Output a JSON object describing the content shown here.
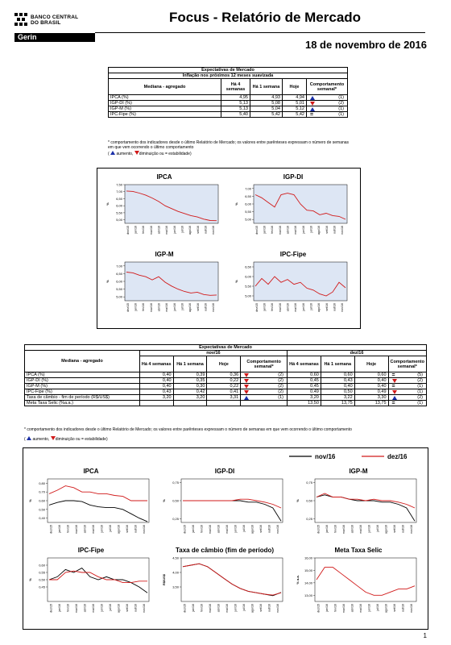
{
  "header": {
    "bank_name_line1": "BANCO CENTRAL",
    "bank_name_line2": "DO BRASIL",
    "dept": "Gerin",
    "title": "Focus - Relatório de Mercado",
    "date": "18 de novembro de 2016"
  },
  "table1": {
    "caption1": "Expectativas de Mercado",
    "caption2": "Inflação nos próximos 12 meses suavizada",
    "col_label": "Mediana - agregado",
    "col_4w": "Há 4 semanas",
    "col_1w": "Há 1 semana",
    "col_today": "Hoje",
    "col_behav": "Comportamento semanal*",
    "rows": [
      {
        "label": "IPCA (%)",
        "w4": "4,95",
        "w1": "4,93",
        "today": "4,94",
        "trend": "up",
        "count": "(1)"
      },
      {
        "label": "IGP-DI (%)",
        "w4": "5,13",
        "w1": "5,08",
        "today": "5,01",
        "trend": "down",
        "count": "(2)"
      },
      {
        "label": "IGP-M (%)",
        "w4": "5,13",
        "w1": "5,04",
        "today": "5,12",
        "trend": "up",
        "count": "(1)"
      },
      {
        "label": "IPC-Fipe (%)",
        "w4": "5,40",
        "w1": "5,42",
        "today": "5,42",
        "trend": "eq",
        "count": "(1)"
      }
    ],
    "footnote": "* comportamento dos indicadores desde o último Relatório de Mercado; os valores entre parênteses expressam o número de semanas em que vem ocorrendo o último comportamento",
    "legend_aumento": "aumento,",
    "legend_diminuicao": "diminuição ou",
    "legend_estab": "= estabilidade)"
  },
  "table2": {
    "caption": "Expectativas de Mercado",
    "label_header": "Mediana - agregado",
    "period1": "nov/16",
    "period2": "dez/16",
    "col_4w": "Há 4 semanas",
    "col_1w": "Há 1 semana",
    "col_today": "Hoje",
    "col_behav": "Comportamento semanal*",
    "rows": [
      {
        "label": "IPCA (%)",
        "a": [
          "0,40",
          "0,39",
          "0,36"
        ],
        "at": "down",
        "ac": "(2)",
        "b": [
          "0,60",
          "0,60",
          "0,60"
        ],
        "bt": "eq",
        "bc": "(5)"
      },
      {
        "label": "IGP-DI (%)",
        "a": [
          "0,40",
          "0,35",
          "0,22"
        ],
        "at": "down",
        "ac": "(2)",
        "b": [
          "0,45",
          "0,43",
          "0,40"
        ],
        "bt": "down",
        "bc": "(2)"
      },
      {
        "label": "IGP-M (%)",
        "a": [
          "0,40",
          "0,30",
          "0,22"
        ],
        "at": "down",
        "ac": "(2)",
        "b": [
          "0,45",
          "0,40",
          "0,40"
        ],
        "bt": "eq",
        "bc": "(1)"
      },
      {
        "label": "IPC-Fipe (%)",
        "a": [
          "0,43",
          "0,42",
          "0,41"
        ],
        "at": "down",
        "ac": "(2)",
        "b": [
          "0,49",
          "0,50",
          "0,49"
        ],
        "bt": "down",
        "bc": "(1)"
      },
      {
        "label": "Taxa de câmbio - fim de período (R$/US$)",
        "a": [
          "3,20",
          "3,20",
          "3,31"
        ],
        "at": "up",
        "ac": "(1)",
        "b": [
          "3,20",
          "3,22",
          "3,30"
        ],
        "bt": "up",
        "bc": "(2)"
      },
      {
        "label": "Meta Taxa Selic (%a.a.)",
        "a": [
          "",
          "",
          ""
        ],
        "at": "",
        "ac": "",
        "b": [
          "13,50",
          "13,75",
          "13,75"
        ],
        "bt": "eq",
        "bc": "(1)"
      }
    ],
    "footnote": "* comportamento dos indicadores desde o último Relatório de Mercado; os valores entre parênteses expressam o número de semanas em que vem ocorrendo o último comportamento",
    "legend_aumento": "aumento,",
    "legend_diminuicao": "diminuição ou",
    "legend_estab": "= estabilidade)"
  },
  "colors": {
    "series_nov": "#000000",
    "series_dez": "#d11a1a",
    "panel1_bg": "#dde6f4",
    "up": "#1a2fa8",
    "down": "#d11a1a"
  },
  "chart_data": [
    {
      "type": "line",
      "title": "IPCA",
      "ylabel": "%",
      "ylim": [
        4.75,
        7.5
      ],
      "yticks": [
        "7,50",
        "7,00",
        "6,50",
        "6,00",
        "5,50",
        "5,00"
      ],
      "xticks": [
        "dez/15",
        "jan/16",
        "fev/16",
        "mar/16",
        "abr/16",
        "mai/16",
        "jun/16",
        "jul/16",
        "ago/16",
        "set/16",
        "out/16",
        "nov/16"
      ],
      "series": [
        {
          "values": [
            7.05,
            7.02,
            6.9,
            6.75,
            6.55,
            6.3,
            6.0,
            5.8,
            5.6,
            5.45,
            5.3,
            5.2,
            5.05,
            4.95,
            4.94
          ]
        }
      ]
    },
    {
      "type": "line",
      "title": "IGP-DI",
      "ylabel": "%",
      "ylim": [
        4.75,
        7.25
      ],
      "yticks": [
        "7,00",
        "6,50",
        "6,00",
        "5,50",
        "5,00"
      ],
      "xticks": [
        "dez/15",
        "jan/16",
        "fev/16",
        "mar/16",
        "abr/16",
        "mai/16",
        "jun/16",
        "jul/16",
        "ago/16",
        "set/16",
        "out/16",
        "nov/16"
      ],
      "series": [
        {
          "values": [
            6.6,
            6.4,
            6.1,
            5.8,
            6.6,
            6.7,
            6.6,
            6.0,
            5.6,
            5.55,
            5.3,
            5.4,
            5.25,
            5.2,
            5.01
          ]
        }
      ]
    },
    {
      "type": "line",
      "title": "IGP-M",
      "ylabel": "%",
      "ylim": [
        4.75,
        7.25
      ],
      "yticks": [
        "7,00",
        "6,50",
        "6,00",
        "5,50",
        "5,00"
      ],
      "xticks": [
        "dez/15",
        "jan/16",
        "fev/16",
        "mar/16",
        "abr/16",
        "mai/16",
        "jun/16",
        "jul/16",
        "ago/16",
        "set/16",
        "out/16",
        "nov/16"
      ],
      "series": [
        {
          "values": [
            6.6,
            6.55,
            6.4,
            6.3,
            6.1,
            6.3,
            5.95,
            5.7,
            5.5,
            5.35,
            5.25,
            5.3,
            5.15,
            5.1,
            5.12
          ]
        }
      ]
    },
    {
      "type": "line",
      "title": "IPC-Fipe",
      "ylabel": "%",
      "ylim": [
        4.75,
        6.75
      ],
      "yticks": [
        "6,50",
        "6,00",
        "5,50",
        "5,00"
      ],
      "xticks": [
        "dez/15",
        "jan/16",
        "fev/16",
        "mar/16",
        "abr/16",
        "mai/16",
        "jun/16",
        "jul/16",
        "ago/16",
        "set/16",
        "out/16",
        "nov/16"
      ],
      "series": [
        {
          "values": [
            5.5,
            5.9,
            5.6,
            6.0,
            5.7,
            5.85,
            5.6,
            5.7,
            5.4,
            5.3,
            5.1,
            5.0,
            5.2,
            5.7,
            5.42
          ]
        }
      ]
    },
    {
      "type": "line",
      "title": "IPCA",
      "ylabel": "%",
      "ylim": [
        0.35,
        0.85
      ],
      "yticks": [
        "0,80",
        "0,70",
        "0,60",
        "0,50",
        "0,40"
      ],
      "xticks": [
        "dez/15",
        "jan/16",
        "fev/16",
        "mar/16",
        "abr/16",
        "mai/16",
        "jun/16",
        "jul/16",
        "ago/16",
        "set/16",
        "out/16",
        "nov/16"
      ],
      "series": [
        {
          "name": "nov/16",
          "values": [
            0.55,
            0.58,
            0.6,
            0.6,
            0.59,
            0.55,
            0.53,
            0.52,
            0.52,
            0.5,
            0.45,
            0.4,
            0.36
          ]
        },
        {
          "name": "dez/16",
          "values": [
            0.68,
            0.72,
            0.77,
            0.75,
            0.7,
            0.7,
            0.68,
            0.68,
            0.66,
            0.65,
            0.6,
            0.6,
            0.6
          ]
        }
      ]
    },
    {
      "type": "line",
      "title": "IGP-DI",
      "ylabel": "%",
      "ylim": [
        0.2,
        0.8
      ],
      "yticks": [
        "0,75",
        "0,50",
        "0,25"
      ],
      "xticks": [
        "dez/15",
        "jan/16",
        "fev/16",
        "mar/16",
        "abr/16",
        "mai/16",
        "jun/16",
        "jul/16",
        "ago/16",
        "set/16",
        "out/16",
        "nov/16"
      ],
      "series": [
        {
          "name": "nov/16",
          "values": [
            0.5,
            0.5,
            0.5,
            0.5,
            0.5,
            0.5,
            0.5,
            0.5,
            0.48,
            0.48,
            0.45,
            0.4,
            0.22
          ]
        },
        {
          "name": "dez/16",
          "values": [
            0.5,
            0.5,
            0.5,
            0.5,
            0.5,
            0.5,
            0.5,
            0.52,
            0.52,
            0.5,
            0.48,
            0.45,
            0.4
          ]
        }
      ]
    },
    {
      "type": "line",
      "title": "IGP-M",
      "ylabel": "%",
      "ylim": [
        0.2,
        0.8
      ],
      "yticks": [
        "0,75",
        "0,50",
        "0,25"
      ],
      "xticks": [
        "dez/15",
        "jan/16",
        "fev/16",
        "mar/16",
        "abr/16",
        "mai/16",
        "jun/16",
        "jul/16",
        "ago/16",
        "set/16",
        "out/16",
        "nov/16"
      ],
      "series": [
        {
          "name": "nov/16",
          "values": [
            0.55,
            0.58,
            0.55,
            0.55,
            0.52,
            0.5,
            0.5,
            0.5,
            0.48,
            0.48,
            0.45,
            0.4,
            0.22
          ]
        },
        {
          "name": "dez/16",
          "values": [
            0.55,
            0.6,
            0.55,
            0.55,
            0.52,
            0.52,
            0.5,
            0.52,
            0.5,
            0.5,
            0.48,
            0.45,
            0.4
          ]
        }
      ]
    },
    {
      "type": "line",
      "title": "IPC-Fipe",
      "ylabel": "%",
      "ylim": [
        0.35,
        0.65
      ],
      "yticks": [
        "0,60",
        "0,55",
        "0,50",
        "0,45"
      ],
      "xticks": [
        "dez/15",
        "jan/16",
        "fev/16",
        "mar/16",
        "abr/16",
        "mai/16",
        "jun/16",
        "jul/16",
        "ago/16",
        "set/16",
        "out/16",
        "nov/16"
      ],
      "series": [
        {
          "name": "nov/16",
          "values": [
            0.5,
            0.52,
            0.57,
            0.55,
            0.58,
            0.52,
            0.5,
            0.52,
            0.5,
            0.5,
            0.48,
            0.45,
            0.41
          ]
        },
        {
          "name": "dez/16",
          "values": [
            0.5,
            0.5,
            0.55,
            0.56,
            0.55,
            0.55,
            0.52,
            0.5,
            0.5,
            0.48,
            0.48,
            0.49,
            0.49
          ]
        }
      ]
    },
    {
      "type": "line",
      "title": "Taxa de câmbio (fim de período)",
      "ylabel": "R$/US$",
      "ylim": [
        3.0,
        4.5
      ],
      "yticks": [
        "4,50",
        "4,00",
        "3,50"
      ],
      "xticks": [
        "dez/15",
        "jan/16",
        "fev/16",
        "mar/16",
        "abr/16",
        "mai/16",
        "jun/16",
        "jul/16",
        "ago/16",
        "set/16",
        "out/16",
        "nov/16"
      ],
      "series": [
        {
          "name": "nov/16",
          "values": [
            4.2,
            4.25,
            4.3,
            4.2,
            4.0,
            3.8,
            3.6,
            3.45,
            3.35,
            3.3,
            3.25,
            3.2,
            3.31
          ]
        },
        {
          "name": "dez/16",
          "values": [
            4.2,
            4.25,
            4.3,
            4.2,
            4.0,
            3.8,
            3.6,
            3.45,
            3.35,
            3.3,
            3.25,
            3.22,
            3.3
          ]
        }
      ]
    },
    {
      "type": "line",
      "title": "Meta Taxa Selic",
      "ylabel": "% a.a.",
      "ylim": [
        12.5,
        16.0
      ],
      "yticks": [
        "16,00",
        "15,00",
        "14,00",
        "13,00"
      ],
      "xticks": [
        "dez/15",
        "jan/16",
        "fev/16",
        "mar/16",
        "abr/16",
        "mai/16",
        "jun/16",
        "jul/16",
        "ago/16",
        "set/16",
        "out/16",
        "nov/16"
      ],
      "series": [
        {
          "name": "dez/16",
          "values": [
            14.25,
            15.25,
            15.25,
            14.75,
            14.25,
            13.75,
            13.25,
            13.0,
            13.0,
            13.25,
            13.5,
            13.5,
            13.75
          ]
        }
      ]
    }
  ],
  "page_number": "1"
}
